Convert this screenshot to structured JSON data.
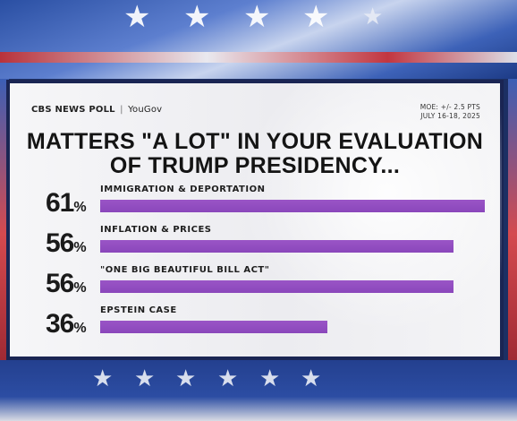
{
  "brand": {
    "cbs": "CBS NEWS POLL",
    "partner": "YouGov"
  },
  "meta": {
    "moe": "MOE: +/- 2.5 PTS",
    "dates": "JULY 16-18, 2025"
  },
  "colors": {
    "bar": "#8a47bb",
    "card": "#efeff2",
    "border": "#1a2553",
    "backdrop_blue": "#2a4fa3",
    "backdrop_red": "#c23640"
  },
  "chart_data": {
    "type": "bar",
    "orientation": "horizontal",
    "title_line1": "MATTERS \"A LOT\" IN YOUR EVALUATION",
    "title_line2": "OF TRUMP PRESIDENCY...",
    "categories": [
      "IMMIGRATION & DEPORTATION",
      "INFLATION & PRICES",
      "\"ONE BIG BEAUTIFUL BILL ACT\"",
      "EPSTEIN CASE"
    ],
    "values": [
      61,
      56,
      56,
      36
    ],
    "value_labels": [
      "61",
      "56",
      "56",
      "36"
    ],
    "unit": "%",
    "xlim": [
      0,
      61
    ],
    "grid": false,
    "legend": "none"
  }
}
